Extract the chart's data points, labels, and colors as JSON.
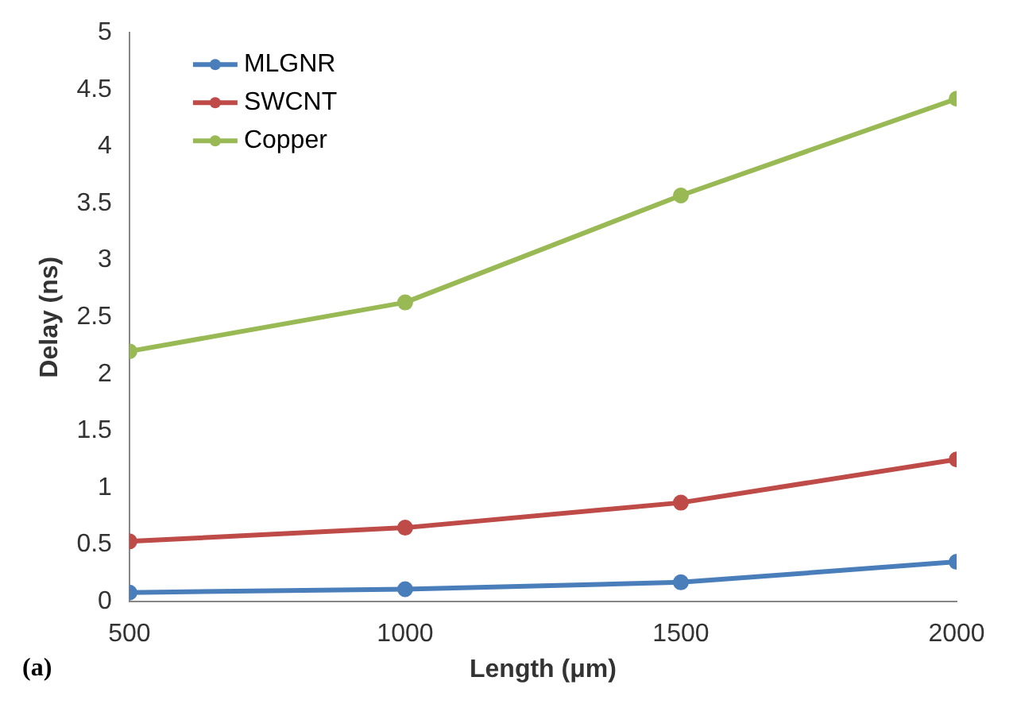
{
  "chart_data": {
    "type": "line",
    "xlabel": "Length (μm)",
    "ylabel": "Delay (ns)",
    "x": [
      500,
      1000,
      1500,
      2000
    ],
    "xlim": [
      500,
      2000
    ],
    "xticks": [
      500,
      1000,
      1500,
      2000
    ],
    "ylim": [
      0,
      5
    ],
    "yticks": [
      0,
      0.5,
      1,
      1.5,
      2,
      2.5,
      3,
      3.5,
      4,
      4.5,
      5
    ],
    "grid": false,
    "legend": "top left",
    "marker": "circle",
    "annotations": [
      "(a)"
    ],
    "series": [
      {
        "name": "MLGNR",
        "color": "#4a7ebb",
        "values": [
          0.08,
          0.11,
          0.17,
          0.35
        ]
      },
      {
        "name": "SWCNT",
        "color": "#be4b48",
        "values": [
          0.53,
          0.65,
          0.87,
          1.25
        ]
      },
      {
        "name": "Copper",
        "color": "#98b954",
        "values": [
          2.2,
          2.63,
          3.57,
          4.42
        ]
      }
    ]
  }
}
